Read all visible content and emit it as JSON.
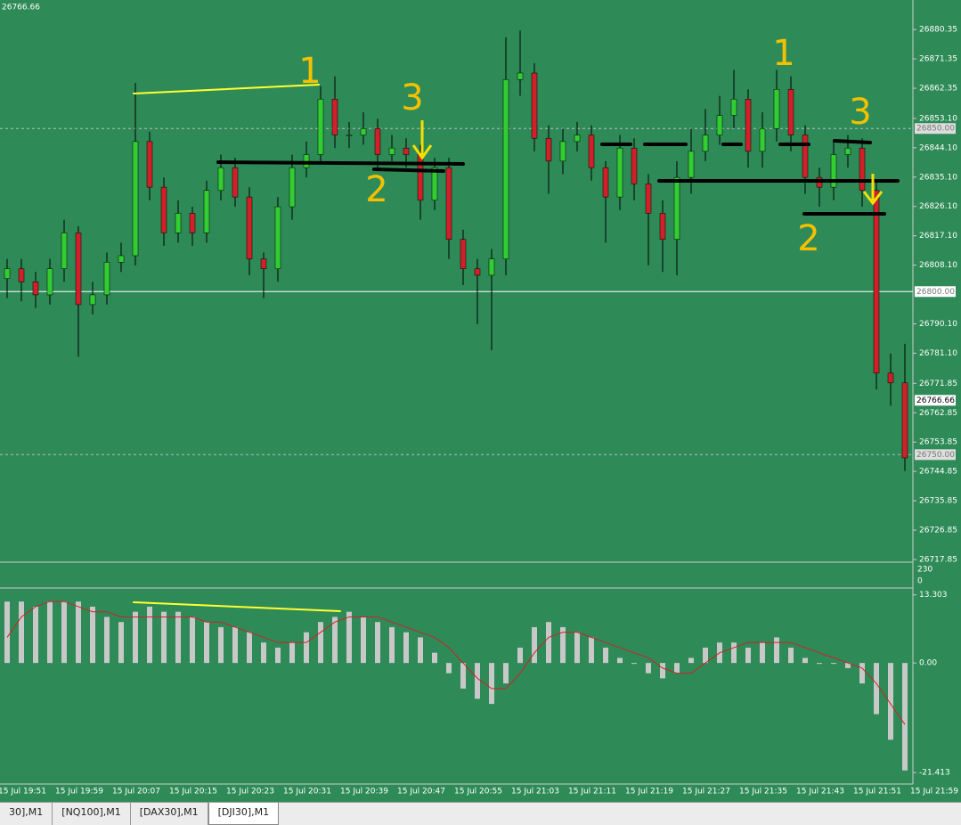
{
  "title": "26766.66",
  "chart_data": {
    "type": "candlestick",
    "ylim": [
      26717.3,
      26889.4
    ],
    "yticks": [
      26880.35,
      26871.35,
      26862.35,
      {
        "value": 26853.1,
        "label": "26853.10"
      },
      {
        "value": 26844.1,
        "label": "26844.10"
      },
      {
        "value": 26835.1,
        "label": "26835.10"
      },
      {
        "value": 26826.1,
        "label": "26826.10"
      },
      {
        "value": 26817.1,
        "label": "26817.10"
      },
      {
        "value": 26808.1,
        "label": "26808.10"
      },
      {
        "value": 26790.1,
        "label": "26790.10"
      },
      {
        "value": 26781.1,
        "label": "26781.10"
      },
      26771.85,
      26762.85,
      26753.85,
      26744.85,
      26735.85,
      26726.85,
      26717.85
    ],
    "levels": [
      {
        "value": 26850,
        "label": "26850.00",
        "style": "dashed"
      },
      {
        "value": 26800,
        "label": "26800.00",
        "style": "solid"
      },
      {
        "value": 26750,
        "label": "26750.00",
        "style": "dashed"
      }
    ],
    "current": {
      "value": 26766.66,
      "label": "26766.66"
    },
    "up_color": "#32cd32",
    "down_color": "#d0202a",
    "open": [
      26804,
      26807,
      26803,
      26799,
      26807,
      26818,
      26796,
      26799,
      26809,
      26811,
      26846,
      26832,
      26818,
      26824,
      26818,
      26831,
      26838,
      26829,
      26810,
      26807,
      26826,
      26838,
      26842,
      26859,
      26848,
      26848,
      26850,
      26842,
      26844,
      26842,
      26828,
      26838,
      26816,
      26807,
      26805,
      26810,
      26865,
      26867,
      26847,
      26840,
      26846,
      26848,
      26838,
      26829,
      26844,
      26833,
      26824,
      26816,
      26835,
      26843,
      26848,
      26854,
      26859,
      26843,
      26850,
      26862,
      26848,
      26835,
      26832,
      26842,
      26844,
      26831,
      26775,
      26772
    ],
    "high": [
      26810,
      26810,
      26806,
      26810,
      26822,
      26820,
      26803,
      26812,
      26815,
      26864,
      26849,
      26835,
      26828,
      26826,
      26834,
      26842,
      26841,
      26832,
      26812,
      26829,
      26842,
      26846,
      26863,
      26866,
      26852,
      26855,
      26853,
      26848,
      26847,
      26845,
      26841,
      26841,
      26819,
      26810,
      26813,
      26878,
      26880,
      26870,
      26851,
      26850,
      26852,
      26851,
      26840,
      26848,
      26847,
      26836,
      26828,
      26840,
      26850,
      26856,
      26860,
      26868,
      26862,
      26855,
      26868,
      26866,
      26851,
      26838,
      26846,
      26848,
      26847,
      26834,
      26781,
      26784
    ],
    "low": [
      26798,
      26797,
      26795,
      26796,
      26803,
      26780,
      26793,
      26796,
      26806,
      26808,
      26828,
      26814,
      26815,
      26814,
      26815,
      26828,
      26826,
      26805,
      26798,
      26803,
      26822,
      26835,
      26839,
      26844,
      26844,
      26845,
      26838,
      26840,
      26838,
      26822,
      26825,
      26810,
      26802,
      26790,
      26782,
      26805,
      26860,
      26843,
      26830,
      26836,
      26843,
      26834,
      26815,
      26825,
      26828,
      26808,
      26806,
      26805,
      26830,
      26840,
      26845,
      26850,
      26838,
      26838,
      26846,
      26843,
      26830,
      26826,
      26828,
      26838,
      26826,
      26770,
      26765,
      26745
    ],
    "close": [
      26807,
      26803,
      26799,
      26807,
      26818,
      26796,
      26799,
      26809,
      26811,
      26846,
      26832,
      26818,
      26824,
      26818,
      26831,
      26838,
      26829,
      26810,
      26807,
      26826,
      26838,
      26842,
      26859,
      26848,
      26848,
      26850,
      26842,
      26844,
      26842,
      26828,
      26838,
      26816,
      26807,
      26805,
      26810,
      26865,
      26867,
      26847,
      26840,
      26846,
      26848,
      26838,
      26829,
      26844,
      26833,
      26824,
      26816,
      26835,
      26843,
      26848,
      26854,
      26859,
      26843,
      26850,
      26862,
      26848,
      26835,
      26832,
      26842,
      26844,
      26831,
      26775,
      26772,
      26749
    ],
    "x_labels": [
      "15 Jul 19:51",
      "15 Jul 19:59",
      "15 Jul 20:07",
      "15 Jul 20:15",
      "15 Jul 20:23",
      "15 Jul 20:31",
      "15 Jul 20:39",
      "15 Jul 20:47",
      "15 Jul 20:55",
      "15 Jul 21:03",
      "15 Jul 21:11",
      "15 Jul 21:19",
      "15 Jul 21:27",
      "15 Jul 21:35",
      "15 Jul 21:43",
      "15 Jul 21:51",
      "15 Jul 21:59"
    ],
    "volume_ticks": [
      230,
      0
    ],
    "macd": {
      "ylim": [
        -23.3,
        14.3
      ],
      "yticks": [
        13.303,
        {
          "value": 0,
          "label": "0.00"
        },
        -21.413
      ],
      "hist_color": "#c8c8c8",
      "signal_color": "#d0202a",
      "hist": [
        12,
        12,
        11,
        12,
        12,
        12,
        11,
        9,
        8,
        10,
        11,
        10,
        10,
        9,
        8,
        7,
        7,
        6,
        4,
        3,
        4,
        6,
        8,
        9,
        10,
        9,
        8,
        7,
        6,
        5,
        2,
        -2,
        -5,
        -7,
        -8,
        -4,
        3,
        7,
        8,
        7,
        6,
        5,
        3,
        1,
        0,
        -2,
        -3,
        -2,
        1,
        3,
        4,
        4,
        3,
        4,
        5,
        3,
        1,
        0,
        0,
        -1,
        -4,
        -10,
        -15,
        -21
      ],
      "signal": [
        5,
        9,
        11,
        12,
        12,
        11,
        10,
        10,
        9,
        9,
        9,
        9,
        9,
        9,
        8,
        8,
        7,
        6,
        5,
        4,
        4,
        4,
        6,
        8,
        9,
        9,
        9,
        8,
        7,
        6,
        5,
        3,
        0,
        -3,
        -5,
        -5,
        -2,
        2,
        5,
        6,
        6,
        5,
        4,
        3,
        2,
        1,
        -1,
        -2,
        -2,
        0,
        2,
        3,
        4,
        4,
        4,
        4,
        3,
        2,
        1,
        0,
        -1,
        -4,
        -8,
        -12
      ]
    },
    "annotations": [
      "1",
      "3",
      "2",
      "1",
      "3",
      "2"
    ]
  },
  "tabs": [
    "30],M1",
    "[NQ100],M1",
    "[DAX30],M1",
    "[DJI30],M1"
  ]
}
